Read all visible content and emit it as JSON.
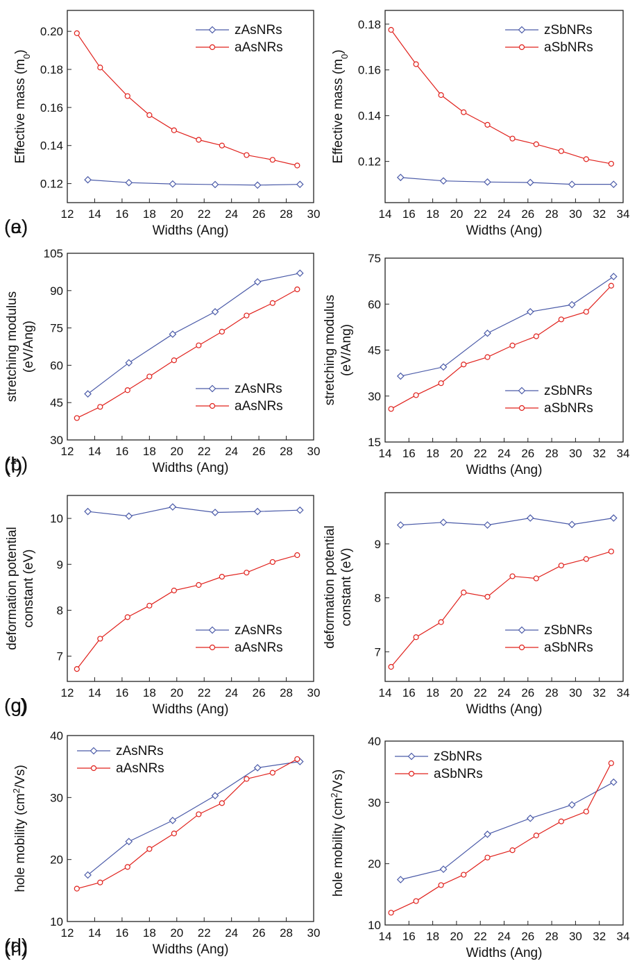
{
  "chart_data": [
    {
      "type": "line",
      "panel_label": "(a)",
      "xlabel": "Widths (Ang)",
      "ylabel": [
        [
          {
            "text": "Effective mass (m"
          },
          {
            "text": "0",
            "script": "sub"
          },
          {
            "text": ")"
          }
        ]
      ],
      "xlim": [
        12,
        30
      ],
      "xticks": [
        12,
        14,
        16,
        18,
        20,
        22,
        24,
        26,
        28,
        30
      ],
      "ylim": [
        0.11,
        0.211
      ],
      "yticks": [
        0.12,
        0.14,
        0.16,
        0.18,
        {
          "value": 0.2,
          "label": "0.20"
        }
      ],
      "legend": "upper-right",
      "series": [
        {
          "name": "zAsNRs",
          "color": "#4a5aa8",
          "marker": "diamond",
          "x": [
            13.5,
            16.5,
            19.7,
            22.8,
            25.9,
            29.0
          ],
          "values": [
            0.122,
            0.1205,
            0.1198,
            0.1195,
            0.1192,
            0.1196
          ]
        },
        {
          "name": "aAsNRs",
          "color": "#e0201b",
          "marker": "circle",
          "x": [
            12.7,
            14.4,
            16.4,
            18.0,
            19.8,
            21.6,
            23.3,
            25.1,
            27.0,
            28.8
          ],
          "values": [
            0.199,
            0.181,
            0.166,
            0.156,
            0.148,
            0.143,
            0.14,
            0.135,
            0.1325,
            0.1295
          ]
        }
      ]
    },
    {
      "type": "line",
      "panel_label": "(b)",
      "xlabel": "Widths (Ang)",
      "ylabel": [
        [
          {
            "text": "stretching modulus"
          }
        ],
        [
          {
            "text": "(eV/Ang)"
          }
        ]
      ],
      "xlim": [
        12,
        30
      ],
      "xticks": [
        12,
        14,
        16,
        18,
        20,
        22,
        24,
        26,
        28,
        30
      ],
      "ylim": [
        30,
        105
      ],
      "yticks": [
        30,
        45,
        60,
        75,
        90,
        105
      ],
      "legend": "lower-right",
      "series": [
        {
          "name": "zAsNRs",
          "color": "#4a5aa8",
          "marker": "diamond",
          "x": [
            13.5,
            16.5,
            19.7,
            22.8,
            25.9,
            29.0
          ],
          "values": [
            48.5,
            61,
            72.5,
            81.5,
            93.5,
            97
          ]
        },
        {
          "name": "aAsNRs",
          "color": "#e0201b",
          "marker": "circle",
          "x": [
            12.7,
            14.4,
            16.4,
            18.0,
            19.8,
            21.6,
            23.3,
            25.1,
            27.0,
            28.8
          ],
          "values": [
            38.8,
            43.3,
            50,
            55.5,
            62,
            68,
            73.5,
            80,
            85,
            90.5
          ]
        }
      ]
    },
    {
      "type": "line",
      "panel_label": "(c)",
      "xlabel": "Widths (Ang)",
      "ylabel": [
        [
          {
            "text": "deformation potential"
          }
        ],
        [
          {
            "text": "constant (eV)"
          }
        ]
      ],
      "xlim": [
        12,
        30
      ],
      "xticks": [
        12,
        14,
        16,
        18,
        20,
        22,
        24,
        26,
        28,
        30
      ],
      "ylim": [
        6.45,
        10.5
      ],
      "yticks": [
        7,
        8,
        9,
        10
      ],
      "legend": "lower-right",
      "series": [
        {
          "name": "zAsNRs",
          "color": "#4a5aa8",
          "marker": "diamond",
          "x": [
            13.5,
            16.5,
            19.7,
            22.8,
            25.9,
            29.0
          ],
          "values": [
            10.15,
            10.05,
            10.25,
            10.13,
            10.15,
            10.18
          ]
        },
        {
          "name": "aAsNRs",
          "color": "#e0201b",
          "marker": "circle",
          "x": [
            12.7,
            14.4,
            16.4,
            18.0,
            19.8,
            21.6,
            23.3,
            25.1,
            27.0,
            28.8
          ],
          "values": [
            6.72,
            7.38,
            7.85,
            8.1,
            8.43,
            8.55,
            8.73,
            8.82,
            9.05,
            9.2
          ]
        }
      ]
    },
    {
      "type": "line",
      "panel_label": "(d)",
      "xlabel": "Widths (Ang)",
      "ylabel": [
        [
          {
            "text": "hole mobility (cm"
          },
          {
            "text": "2",
            "script": "super"
          },
          {
            "text": "/Vs)"
          }
        ]
      ],
      "xlim": [
        12,
        30
      ],
      "xticks": [
        12,
        14,
        16,
        18,
        20,
        22,
        24,
        26,
        28,
        30
      ],
      "ylim": [
        10,
        40
      ],
      "yticks": [
        10,
        20,
        30,
        40
      ],
      "legend": "upper-left",
      "series": [
        {
          "name": "zAsNRs",
          "color": "#4a5aa8",
          "marker": "diamond",
          "x": [
            13.5,
            16.5,
            19.7,
            22.8,
            25.9,
            29.0
          ],
          "values": [
            17.5,
            22.9,
            26.3,
            30.3,
            34.8,
            35.8
          ]
        },
        {
          "name": "aAsNRs",
          "color": "#e0201b",
          "marker": "circle",
          "x": [
            12.7,
            14.4,
            16.4,
            18.0,
            19.8,
            21.6,
            23.3,
            25.1,
            27.0,
            28.8
          ],
          "values": [
            15.3,
            16.3,
            18.8,
            21.7,
            24.2,
            27.3,
            29.1,
            33,
            34,
            36.2
          ]
        }
      ]
    },
    {
      "type": "line",
      "panel_label": "(e)",
      "xlabel": "Widths (Ang)",
      "ylabel": [
        [
          {
            "text": "Effective mass (m"
          },
          {
            "text": "0",
            "script": "sub"
          },
          {
            "text": ")"
          }
        ]
      ],
      "xlim": [
        14,
        34
      ],
      "xticks": [
        14,
        16,
        18,
        20,
        22,
        24,
        26,
        28,
        30,
        32,
        34
      ],
      "ylim": [
        0.102,
        0.186
      ],
      "yticks": [
        0.12,
        0.14,
        0.16,
        0.18
      ],
      "legend": "upper-right",
      "series": [
        {
          "name": "zSbNRs",
          "color": "#4a5aa8",
          "marker": "diamond",
          "x": [
            15.3,
            18.9,
            22.6,
            26.2,
            29.7,
            33.2
          ],
          "values": [
            0.113,
            0.1115,
            0.111,
            0.1108,
            0.11,
            0.11
          ]
        },
        {
          "name": "aSbNRs",
          "color": "#e0201b",
          "marker": "circle",
          "x": [
            14.5,
            16.6,
            18.7,
            20.6,
            22.6,
            24.7,
            26.7,
            28.8,
            30.9,
            33.0
          ],
          "values": [
            0.1775,
            0.1625,
            0.149,
            0.1415,
            0.136,
            0.13,
            0.1275,
            0.1245,
            0.121,
            0.119
          ]
        }
      ]
    },
    {
      "type": "line",
      "panel_label": "(f)",
      "xlabel": "Widths (Ang)",
      "ylabel": [
        [
          {
            "text": "stretching modulus"
          }
        ],
        [
          {
            "text": "(eV/Ang)"
          }
        ]
      ],
      "xlim": [
        14,
        34
      ],
      "xticks": [
        14,
        16,
        18,
        20,
        22,
        24,
        26,
        28,
        30,
        32,
        34
      ],
      "ylim": [
        15,
        75
      ],
      "yticks": [
        15,
        30,
        45,
        60,
        75
      ],
      "legend": "lower-right",
      "series": [
        {
          "name": "zSbNRs",
          "color": "#4a5aa8",
          "marker": "diamond",
          "x": [
            15.3,
            18.9,
            22.6,
            26.2,
            29.7,
            33.2
          ],
          "values": [
            36.5,
            39.5,
            50.5,
            57.5,
            59.8,
            69
          ]
        },
        {
          "name": "aSbNRs",
          "color": "#e0201b",
          "marker": "circle",
          "x": [
            14.5,
            16.6,
            18.7,
            20.6,
            22.6,
            24.7,
            26.7,
            28.8,
            30.9,
            33.0
          ],
          "values": [
            25.8,
            30.3,
            34.2,
            40.3,
            42.7,
            46.5,
            49.5,
            55,
            57.5,
            66
          ]
        }
      ]
    },
    {
      "type": "line",
      "panel_label": "(g)",
      "xlabel": "Widths (Ang)",
      "ylabel": [
        [
          {
            "text": "deformation potential"
          }
        ],
        [
          {
            "text": "constant (eV)"
          }
        ]
      ],
      "xlim": [
        14,
        34
      ],
      "xticks": [
        14,
        16,
        18,
        20,
        22,
        24,
        26,
        28,
        30,
        32,
        34
      ],
      "ylim": [
        6.45,
        9.95
      ],
      "yticks": [
        7,
        8,
        9
      ],
      "legend": "lower-right",
      "series": [
        {
          "name": "zSbNRs",
          "color": "#4a5aa8",
          "marker": "diamond",
          "x": [
            15.3,
            18.9,
            22.6,
            26.2,
            29.7,
            33.2
          ],
          "values": [
            9.35,
            9.4,
            9.35,
            9.48,
            9.36,
            9.48
          ]
        },
        {
          "name": "aSbNRs",
          "color": "#e0201b",
          "marker": "circle",
          "x": [
            14.5,
            16.6,
            18.7,
            20.6,
            22.6,
            24.7,
            26.7,
            28.8,
            30.9,
            33.0
          ],
          "values": [
            6.72,
            7.27,
            7.55,
            8.1,
            8.02,
            8.4,
            8.36,
            8.6,
            8.72,
            8.86
          ]
        }
      ]
    },
    {
      "type": "line",
      "panel_label": "(h)",
      "xlabel": "Widths (Ang)",
      "ylabel": [
        [
          {
            "text": "hole mobility (cm"
          },
          {
            "text": "2",
            "script": "super"
          },
          {
            "text": "/Vs)"
          }
        ]
      ],
      "xlim": [
        14,
        34
      ],
      "xticks": [
        14,
        16,
        18,
        20,
        22,
        24,
        26,
        28,
        30,
        32,
        34
      ],
      "ylim": [
        10,
        40
      ],
      "yticks": [
        10,
        20,
        30,
        40
      ],
      "legend": "upper-left",
      "series": [
        {
          "name": "zSbNRs",
          "color": "#4a5aa8",
          "marker": "diamond",
          "x": [
            15.3,
            18.9,
            22.6,
            26.2,
            29.7,
            33.2
          ],
          "values": [
            17.4,
            19.1,
            24.8,
            27.4,
            29.6,
            33.3
          ]
        },
        {
          "name": "aSbNRs",
          "color": "#e0201b",
          "marker": "circle",
          "x": [
            14.5,
            16.6,
            18.7,
            20.6,
            22.6,
            24.7,
            26.7,
            28.8,
            30.9,
            33.0
          ],
          "values": [
            12,
            13.9,
            16.5,
            18.2,
            21,
            22.2,
            24.6,
            26.9,
            28.5,
            36.4
          ]
        }
      ]
    }
  ]
}
